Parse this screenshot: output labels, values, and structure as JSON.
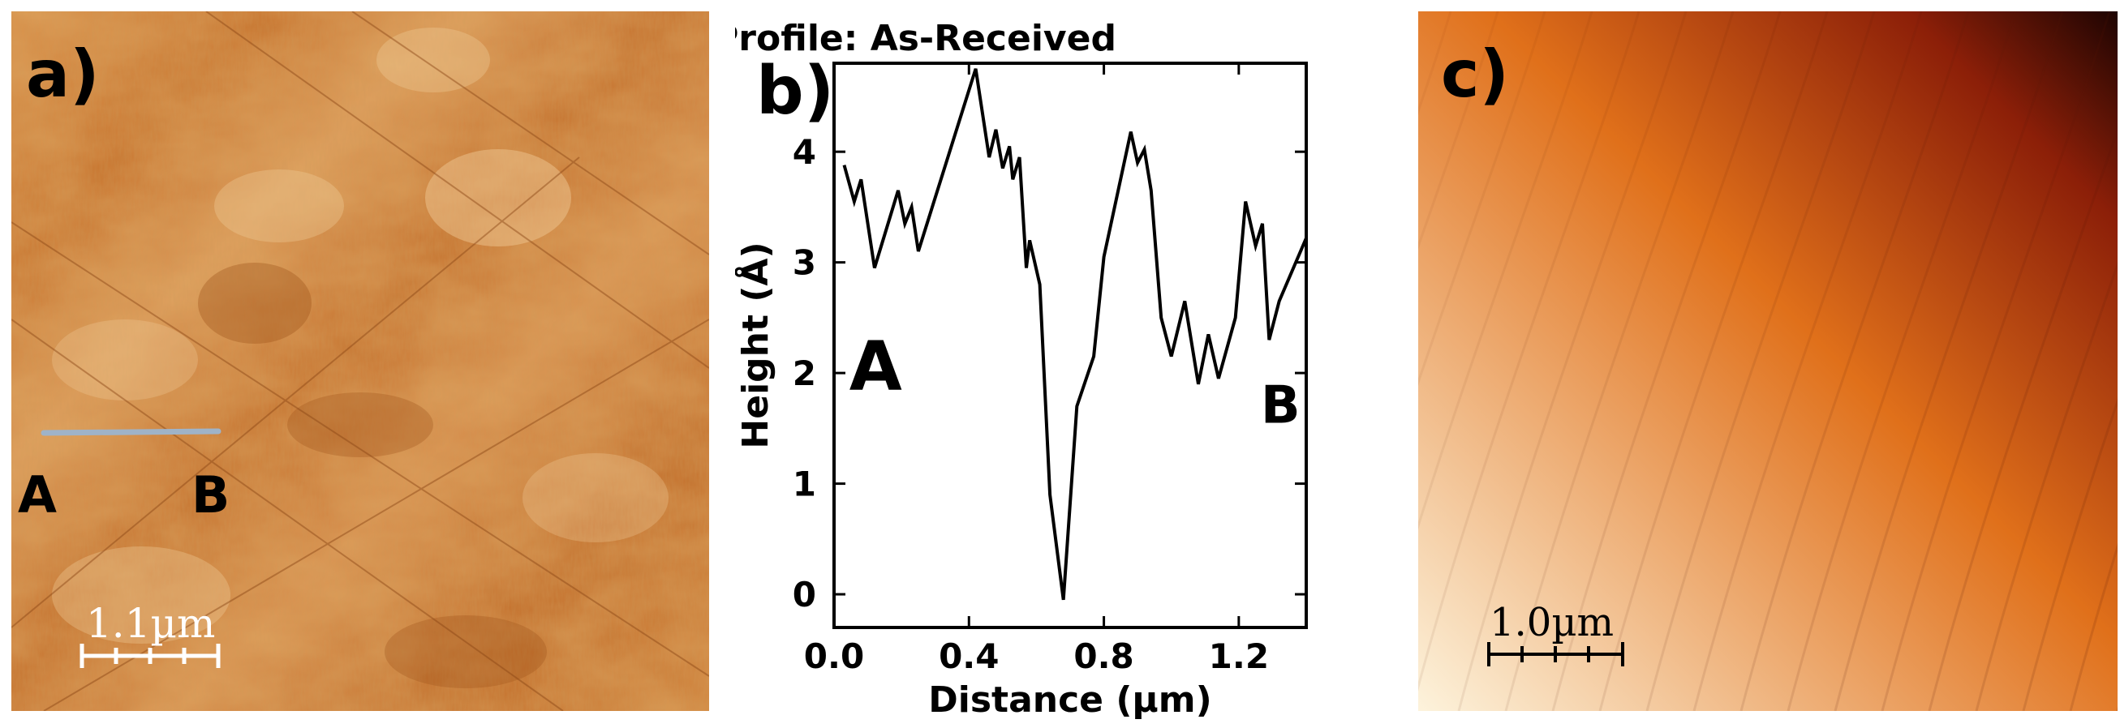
{
  "panel_a": {
    "label": "a)",
    "point_a": "A",
    "point_b": "B",
    "scalebar_label": "1.1µm",
    "colors": {
      "base": "#c9732a",
      "light": "#f1cd9a",
      "dark": "#9c4f18",
      "line": "#9fb3c8"
    }
  },
  "panel_c": {
    "label": "c)",
    "scalebar_label": "1.0µm",
    "colors": {
      "light": "#fdf3dc",
      "mid": "#e0701a",
      "dark": "#1e0402"
    }
  },
  "chart_data": {
    "type": "line",
    "title": "Profile: As-Received",
    "panel_label": "b)",
    "xlabel": "Distance (µm)",
    "ylabel": "Height (Å)",
    "xlim": [
      0.0,
      1.4
    ],
    "ylim": [
      -0.3,
      4.8
    ],
    "x_ticks": [
      "0.0",
      "0.4",
      "0.8",
      "1.2"
    ],
    "x_tick_values": [
      0.0,
      0.4,
      0.8,
      1.2
    ],
    "y_ticks": [
      "0",
      "1",
      "2",
      "3",
      "4"
    ],
    "y_tick_values": [
      0,
      1,
      2,
      3,
      4
    ],
    "grid": false,
    "annotations": [
      "A",
      "B"
    ],
    "series": [
      {
        "color": "#000000",
        "x": [
          0.03,
          0.06,
          0.08,
          0.12,
          0.15,
          0.19,
          0.21,
          0.23,
          0.25,
          0.42,
          0.46,
          0.48,
          0.5,
          0.52,
          0.53,
          0.55,
          0.57,
          0.58,
          0.61,
          0.64,
          0.68,
          0.72,
          0.77,
          0.8,
          0.88,
          0.9,
          0.92,
          0.94,
          0.97,
          1.0,
          1.04,
          1.08,
          1.11,
          1.14,
          1.19,
          1.22,
          1.25,
          1.27,
          1.29,
          1.32,
          1.4
        ],
        "y": [
          3.88,
          3.55,
          3.75,
          2.95,
          3.25,
          3.65,
          3.35,
          3.5,
          3.1,
          4.75,
          3.95,
          4.2,
          3.85,
          4.05,
          3.75,
          3.95,
          2.95,
          3.2,
          2.8,
          0.9,
          -0.05,
          1.7,
          2.15,
          3.05,
          4.18,
          3.9,
          4.02,
          3.65,
          2.5,
          2.15,
          2.65,
          1.9,
          2.35,
          1.95,
          2.5,
          3.55,
          3.15,
          3.35,
          2.3,
          2.65,
          3.22
        ]
      }
    ]
  }
}
